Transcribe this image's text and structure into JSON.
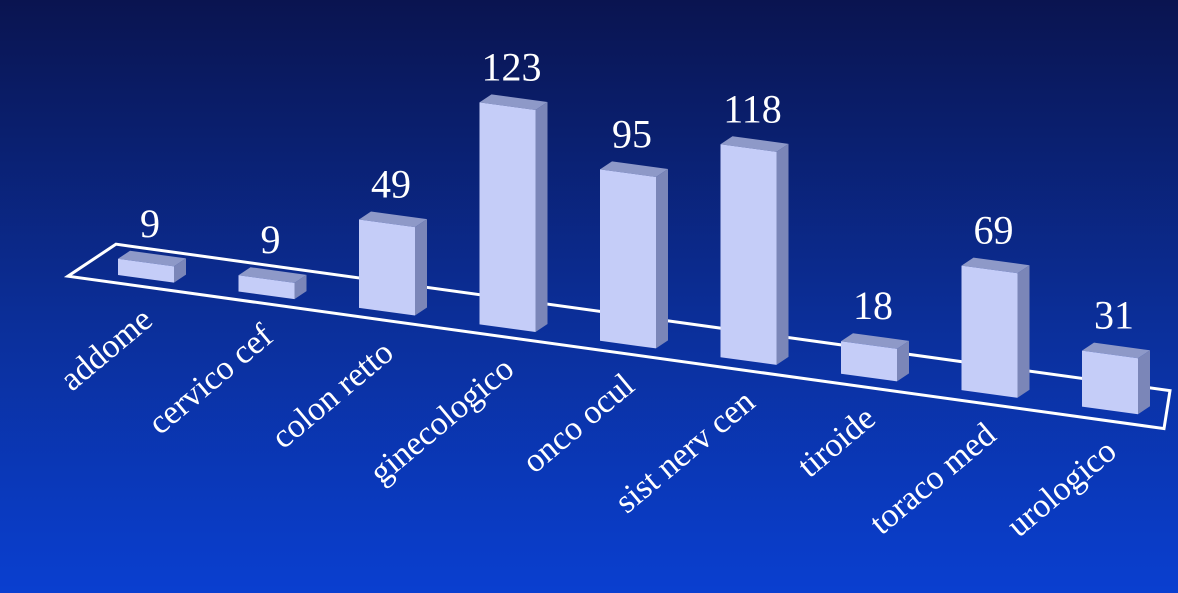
{
  "chart_data": {
    "type": "bar",
    "style": "3d-perspective",
    "categories": [
      "addome",
      "cervico cef",
      "colon retto",
      "ginecologico",
      "onco ocul",
      "sist nerv cen",
      "tiroide",
      "toraco med",
      "urologico"
    ],
    "values": [
      9,
      9,
      49,
      123,
      95,
      118,
      18,
      69,
      31
    ],
    "title": "",
    "xlabel": "",
    "ylabel": "",
    "ylim": [
      0,
      130
    ],
    "grid": false,
    "legend": "none",
    "colors": {
      "background_top": "#0a1450",
      "background_bottom": "#0a3fd0",
      "bar_front": "#c5cdf8",
      "bar_top": "#8e99c8",
      "bar_side": "#7b86b8",
      "text": "#ffffff",
      "floor": "#ffffff"
    }
  }
}
